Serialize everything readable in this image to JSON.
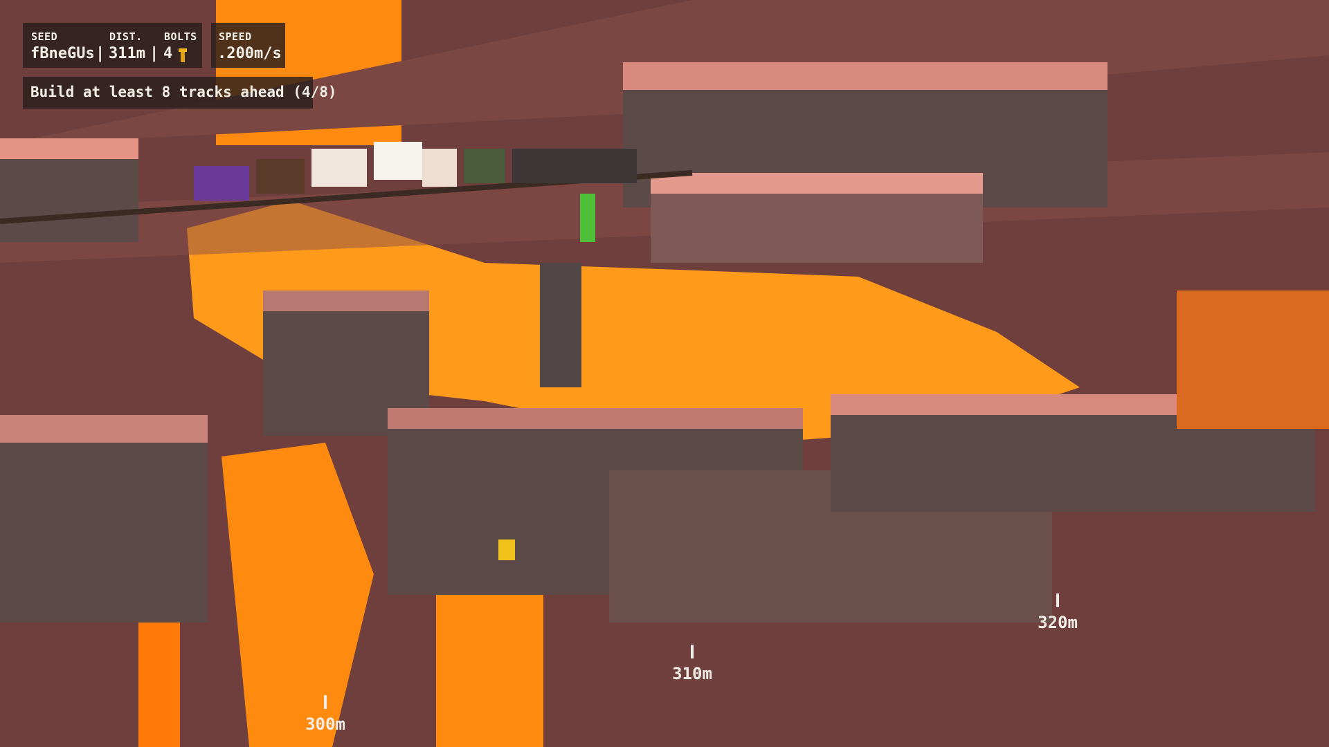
{
  "hud": {
    "seed_label": "SEED",
    "seed_value": "fBneGUs",
    "dist_label": "DIST.",
    "dist_value": "311m",
    "bolts_label": "BOLTS",
    "bolts_value": "4",
    "bolt_icon": "bolt-icon",
    "separator": "|",
    "speed_label": "SPEED",
    "speed_value": ".200m/s"
  },
  "objective": {
    "text": "Build at least 8 tracks ahead (4/8)",
    "current": 4,
    "target": 8
  },
  "markers": [
    "300m",
    "310m",
    "320m"
  ],
  "colors": {
    "lava": "#ff8a10",
    "rock_top": "#d98a7e",
    "rock_side": "#5b4a48",
    "ground": "#6e3f3c",
    "bolt": "#f2b21c"
  }
}
